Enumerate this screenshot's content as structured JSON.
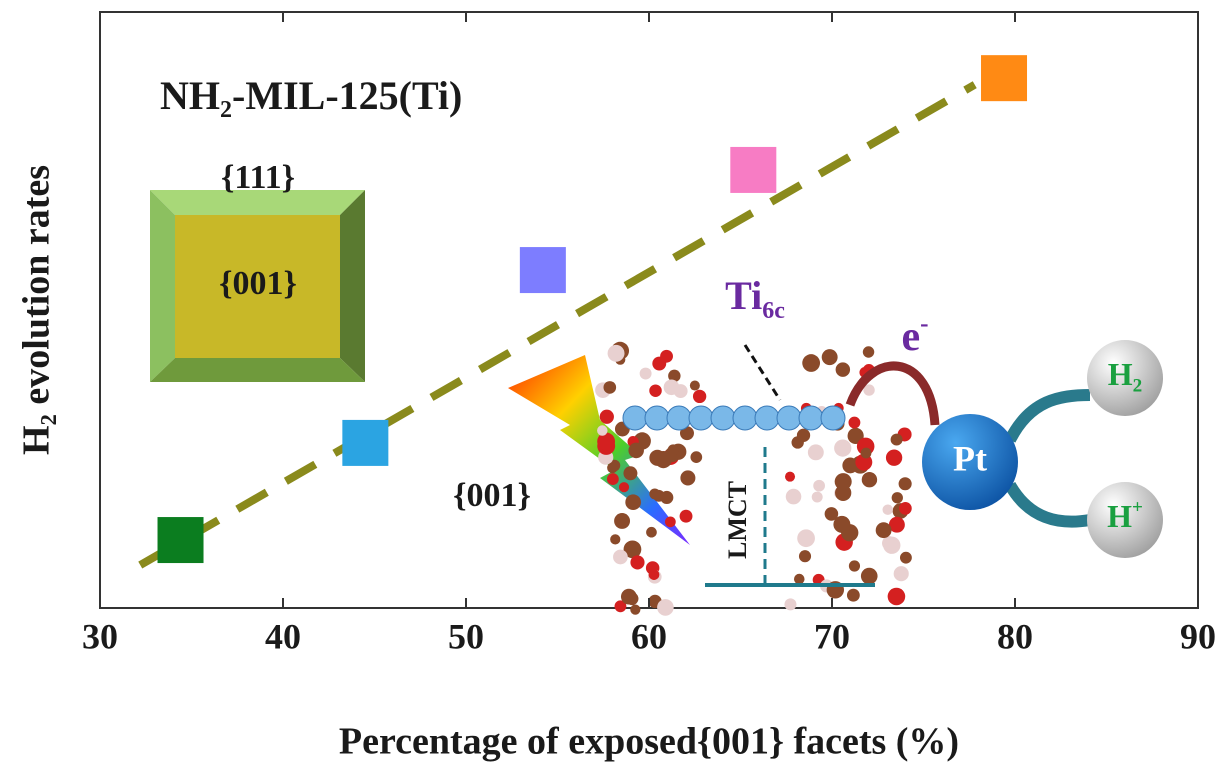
{
  "chart_data": {
    "type": "scatter",
    "title": "NH₂-MIL-125(Ti)",
    "x_label": "Percentage of exposed{001} facets  (%)",
    "y_label": "H₂ evolution rates",
    "xlim": [
      30,
      90
    ],
    "xticks": [
      30,
      40,
      50,
      60,
      70,
      80,
      90
    ],
    "ylim": [
      0,
      10
    ],
    "series": [
      {
        "x": [
          34.4,
          44.5,
          54.2,
          65.7,
          79.4
        ],
        "values": [
          1.14,
          2.77,
          5.67,
          7.35,
          8.89
        ],
        "colors": [
          "#0b7d1f",
          "#2ba4e2",
          "#7d7dff",
          "#f77cc4",
          "#ff8a14"
        ]
      }
    ],
    "trend_line": {
      "x": [
        32.2,
        77.8
      ],
      "y": [
        0.72,
        8.78
      ],
      "color": "#8a8a1c"
    },
    "annotations": {
      "facet_top": "{111}",
      "facet_center": "{001}",
      "facet_bottom": "{001}",
      "ti": {
        "base": "Ti",
        "sub": "6c"
      },
      "electron": {
        "base": "e",
        "sup": "-"
      },
      "lmct": "LMCT",
      "pt": "Pt",
      "h2": {
        "base": "H",
        "sub": "2"
      },
      "hplus": {
        "base": "H",
        "sup": "+"
      }
    }
  }
}
